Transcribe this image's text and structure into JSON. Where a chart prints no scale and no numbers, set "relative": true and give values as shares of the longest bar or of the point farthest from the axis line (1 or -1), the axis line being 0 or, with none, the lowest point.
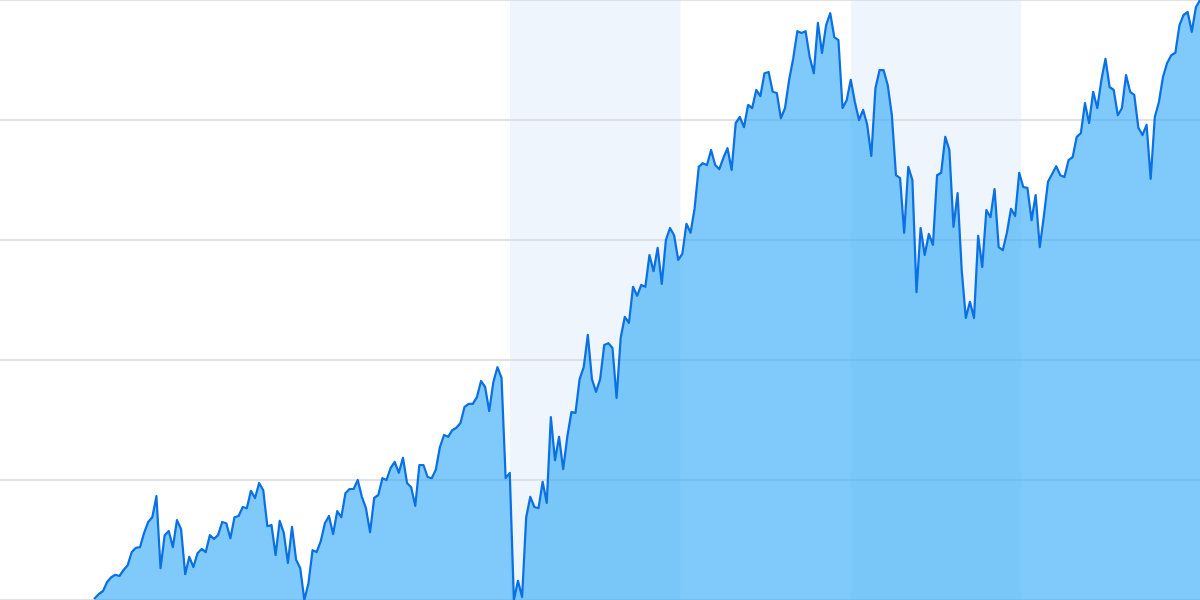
{
  "chart_data": {
    "type": "area",
    "relative": true,
    "categories": [
      null,
      null,
      null,
      null,
      null,
      null,
      null,
      null,
      null,
      null,
      null,
      null,
      null,
      null,
      null,
      null,
      null,
      null,
      null,
      null,
      null,
      null,
      null,
      null,
      null,
      null,
      null,
      null,
      null,
      null,
      null,
      null,
      null,
      null,
      null,
      null,
      null,
      null,
      null,
      null,
      null,
      null,
      null,
      null,
      null,
      null,
      null,
      null,
      null,
      null,
      null,
      null,
      null,
      null,
      null,
      null,
      null,
      null,
      null,
      null,
      null,
      null,
      null,
      null,
      null,
      null,
      null,
      null,
      null,
      null,
      null,
      null,
      null,
      null,
      null,
      null,
      null,
      null,
      null,
      null,
      null,
      null,
      null,
      null,
      null,
      null,
      null,
      null,
      null,
      null,
      null,
      null,
      null,
      null,
      null,
      null,
      null,
      null,
      null,
      null,
      null,
      null,
      null,
      null,
      null,
      null,
      null,
      null,
      null,
      null,
      null,
      null,
      null,
      null,
      null,
      null,
      null,
      null,
      null,
      null,
      null,
      null,
      null,
      null,
      null,
      null,
      null,
      null,
      null,
      null,
      null,
      null,
      null,
      null,
      null,
      null,
      null,
      null,
      null,
      null,
      null,
      null,
      null,
      null,
      null,
      null,
      null,
      null,
      null,
      null,
      null,
      null,
      null,
      null,
      null,
      null,
      null,
      null,
      null,
      null,
      null,
      null,
      null,
      null,
      null,
      null,
      null,
      null,
      null,
      null,
      null,
      null,
      null,
      null,
      null,
      null,
      null,
      null,
      null,
      null,
      null,
      null,
      null,
      null,
      null,
      null,
      null,
      null,
      null,
      null,
      null,
      null,
      null,
      null,
      null,
      null,
      null,
      null,
      null,
      null,
      null,
      null,
      null,
      null,
      null,
      null,
      null,
      null,
      null,
      null,
      null,
      null,
      null,
      null,
      null,
      null,
      null,
      null,
      null,
      null,
      null,
      null,
      null,
      null,
      null,
      null,
      null,
      null,
      null,
      null,
      null,
      null,
      null,
      null,
      null,
      null,
      null,
      null,
      null,
      null,
      null,
      null,
      null,
      null,
      null,
      null,
      null,
      null,
      null,
      null,
      null,
      null,
      null,
      null,
      null,
      null,
      null,
      null,
      null,
      null,
      null,
      null,
      null,
      null,
      null,
      null,
      null,
      null,
      null,
      null
    ],
    "series": [
      {
        "color": "#0a70e4",
        "values": [
          0.003,
          0.01,
          0.015,
          0.03,
          0.038,
          0.042,
          0.04,
          0.05,
          0.058,
          0.08,
          0.087,
          0.088,
          0.112,
          0.13,
          0.138,
          0.173,
          0.053,
          0.108,
          0.115,
          0.088,
          0.133,
          0.118,
          0.043,
          0.072,
          0.055,
          0.078,
          0.085,
          0.08,
          0.108,
          0.102,
          0.108,
          0.13,
          0.128,
          0.103,
          0.138,
          0.14,
          0.155,
          0.153,
          0.182,
          0.17,
          0.195,
          0.183,
          0.123,
          0.125,
          0.075,
          0.132,
          0.112,
          0.062,
          0.122,
          0.067,
          0.053,
          0.0,
          0.028,
          0.083,
          0.08,
          0.098,
          0.128,
          0.14,
          0.11,
          0.148,
          0.138,
          0.178,
          0.185,
          0.185,
          0.2,
          0.172,
          0.153,
          0.113,
          0.17,
          0.175,
          0.203,
          0.2,
          0.22,
          0.23,
          0.212,
          0.237,
          0.195,
          0.188,
          0.157,
          0.225,
          0.225,
          0.205,
          0.203,
          0.217,
          0.255,
          0.275,
          0.272,
          0.283,
          0.287,
          0.295,
          0.322,
          0.327,
          0.327,
          0.338,
          0.365,
          0.355,
          0.315,
          0.363,
          0.388,
          0.37,
          0.203,
          0.212,
          0.0,
          0.032,
          0.005,
          0.138,
          0.172,
          0.155,
          0.153,
          0.197,
          0.162,
          0.305,
          0.233,
          0.272,
          0.218,
          0.272,
          0.313,
          0.312,
          0.368,
          0.388,
          0.442,
          0.368,
          0.347,
          0.368,
          0.425,
          0.428,
          0.42,
          0.337,
          0.437,
          0.472,
          0.462,
          0.522,
          0.507,
          0.525,
          0.522,
          0.575,
          0.548,
          0.587,
          0.527,
          0.6,
          0.62,
          0.608,
          0.567,
          0.577,
          0.627,
          0.612,
          0.653,
          0.722,
          0.728,
          0.725,
          0.75,
          0.725,
          0.718,
          0.737,
          0.753,
          0.717,
          0.795,
          0.805,
          0.788,
          0.825,
          0.82,
          0.85,
          0.84,
          0.878,
          0.88,
          0.847,
          0.845,
          0.803,
          0.82,
          0.867,
          0.903,
          0.948,
          0.945,
          0.948,
          0.905,
          0.878,
          0.962,
          0.912,
          0.958,
          0.978,
          0.938,
          0.933,
          0.82,
          0.833,
          0.867,
          0.83,
          0.8,
          0.817,
          0.792,
          0.74,
          0.853,
          0.883,
          0.883,
          0.858,
          0.808,
          0.708,
          0.703,
          0.612,
          0.722,
          0.7,
          0.513,
          0.62,
          0.575,
          0.61,
          0.592,
          0.708,
          0.712,
          0.772,
          0.75,
          0.622,
          0.678,
          0.55,
          0.47,
          0.497,
          0.47,
          0.607,
          0.555,
          0.65,
          0.638,
          0.685,
          0.588,
          0.583,
          0.612,
          0.652,
          0.64,
          0.712,
          0.688,
          0.687,
          0.633,
          0.675,
          0.588,
          0.64,
          0.697,
          0.71,
          0.723,
          0.708,
          0.705,
          0.733,
          0.738,
          0.772,
          0.778,
          0.828,
          0.795,
          0.847,
          0.82,
          0.867,
          0.902,
          0.855,
          0.85,
          0.808,
          0.82,
          0.875,
          0.847,
          0.842,
          0.787,
          0.775,
          0.792,
          0.702,
          0.805,
          0.83,
          0.872,
          0.895,
          0.908,
          0.912,
          0.958,
          0.975,
          0.98,
          0.947,
          0.988,
          1.0
        ]
      }
    ],
    "grid": "y",
    "tick_labels": false
  }
}
